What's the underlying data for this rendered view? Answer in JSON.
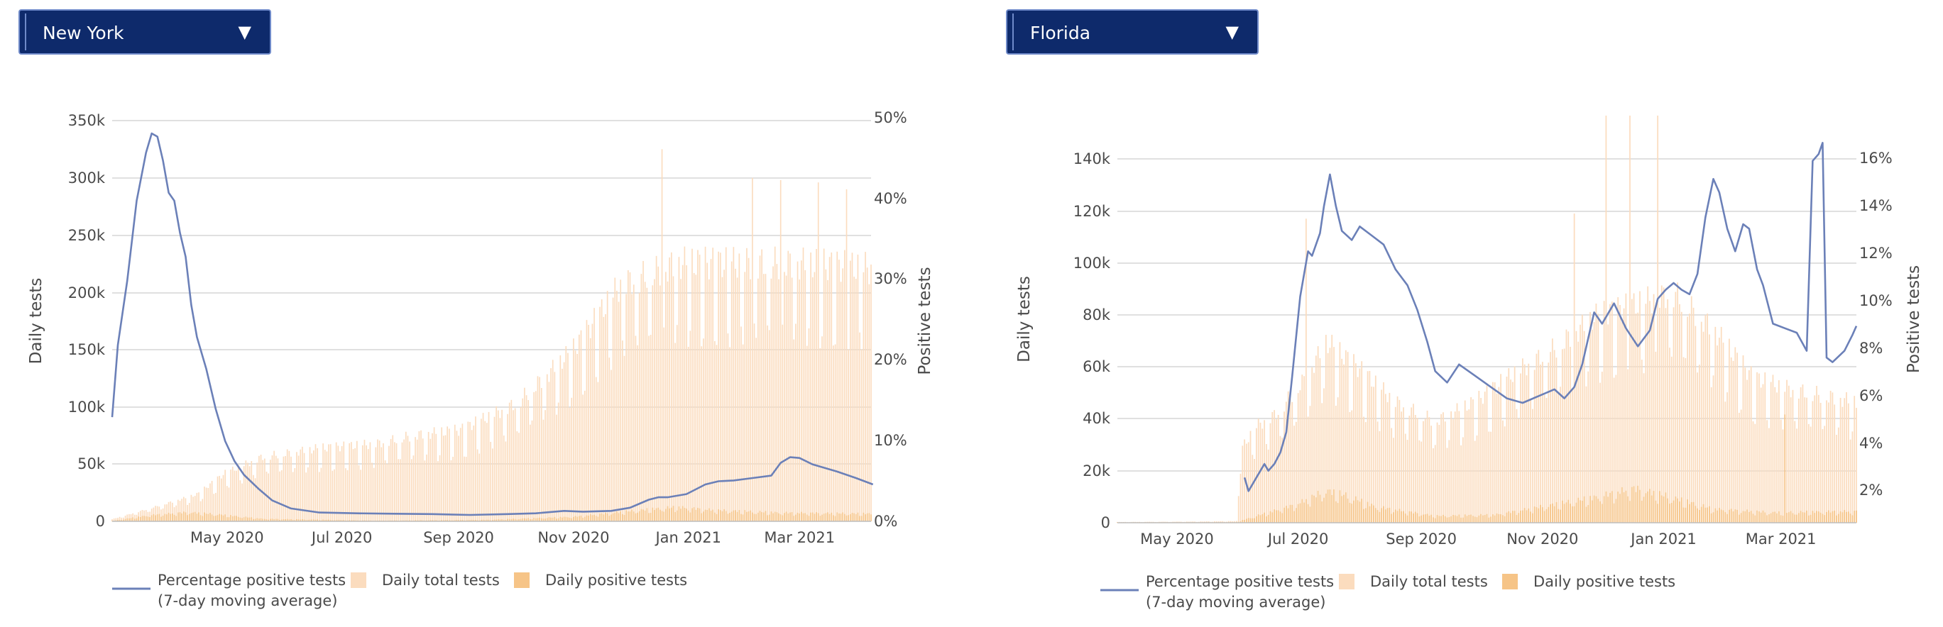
{
  "legend": {
    "line_label_1": "Percentage positive tests",
    "line_label_2": "(7-day moving average)",
    "total_label": "Daily total tests",
    "positive_label": "Daily positive tests"
  },
  "colors": {
    "line": "#6b80b8",
    "total_bars": "#fbdcbe",
    "positive_bars": "#f6c487",
    "grid": "#d6d6d6",
    "dropdown_bg": "#0e2a6b",
    "dropdown_border": "#6f8ac9"
  },
  "panels": [
    {
      "dropdown": {
        "selected": "New York"
      },
      "chart_data": {
        "type": "bar",
        "ylabel": "Daily tests",
        "y2label": "Positive tests",
        "x_ticks": [
          "May 2020",
          "Jul 2020",
          "Sep 2020",
          "Nov 2020",
          "Jan 2021",
          "Mar 2021"
        ],
        "y_ticks": [
          "0",
          "50k",
          "100k",
          "150k",
          "200k",
          "250k",
          "300k",
          "350k"
        ],
        "y2_ticks": [
          "0%",
          "10%",
          "20%",
          "30%",
          "40%",
          "50%"
        ],
        "ylim": [
          0,
          350000
        ],
        "y2lim": [
          0,
          50
        ],
        "x_range": [
          "2020-03-01",
          "2021-04-08"
        ],
        "grid": true,
        "legend_position": "bottom",
        "series": [
          {
            "name": "Daily total tests",
            "kind": "bar",
            "trend": [
              [
                0,
                2000
              ],
              [
                20,
                12000
              ],
              [
                45,
                25000
              ],
              [
                60,
                45000
              ],
              [
                80,
                60000
              ],
              [
                110,
                68000
              ],
              [
                140,
                72000
              ],
              [
                160,
                80000
              ],
              [
                185,
                85000
              ],
              [
                215,
                110000
              ],
              [
                245,
                160000
              ],
              [
                270,
                220000
              ],
              [
                300,
                240000
              ],
              [
                330,
                240000
              ],
              [
                365,
                240000
              ],
              [
                404,
                235000
              ]
            ],
            "peaks": [
              [
                292,
                325000
              ],
              [
                340,
                300000
              ],
              [
                355,
                298000
              ],
              [
                375,
                296000
              ],
              [
                390,
                290000
              ]
            ]
          },
          {
            "name": "Daily positive tests",
            "kind": "bar",
            "trend": [
              [
                0,
                500
              ],
              [
                20,
                6000
              ],
              [
                40,
                9000
              ],
              [
                55,
                7000
              ],
              [
                80,
                2500
              ],
              [
                140,
                700
              ],
              [
                200,
                1500
              ],
              [
                245,
                4500
              ],
              [
                280,
                11000
              ],
              [
                300,
                14000
              ],
              [
                320,
                11000
              ],
              [
                355,
                8500
              ],
              [
                404,
                7500
              ]
            ]
          },
          {
            "name": "Percentage positive tests (7-day moving average)",
            "kind": "line",
            "points": [
              [
                0,
                13
              ],
              [
                3,
                22
              ],
              [
                8,
                30
              ],
              [
                13,
                40
              ],
              [
                18,
                46
              ],
              [
                21,
                48.4
              ],
              [
                24,
                48
              ],
              [
                27,
                45
              ],
              [
                30,
                41
              ],
              [
                33,
                40
              ],
              [
                36,
                36
              ],
              [
                39,
                33
              ],
              [
                42,
                27
              ],
              [
                45,
                23
              ],
              [
                50,
                19
              ],
              [
                55,
                14
              ],
              [
                60,
                10
              ],
              [
                65,
                7.5
              ],
              [
                70,
                5.8
              ],
              [
                78,
                4
              ],
              [
                85,
                2.6
              ],
              [
                95,
                1.6
              ],
              [
                110,
                1.1
              ],
              [
                130,
                1.0
              ],
              [
                150,
                0.95
              ],
              [
                170,
                0.9
              ],
              [
                190,
                0.8
              ],
              [
                210,
                0.9
              ],
              [
                225,
                1.0
              ],
              [
                240,
                1.3
              ],
              [
                250,
                1.2
              ],
              [
                265,
                1.3
              ],
              [
                275,
                1.7
              ],
              [
                285,
                2.7
              ],
              [
                290,
                3.0
              ],
              [
                295,
                3.0
              ],
              [
                305,
                3.4
              ],
              [
                315,
                4.6
              ],
              [
                322,
                5.0
              ],
              [
                330,
                5.1
              ],
              [
                340,
                5.4
              ],
              [
                350,
                5.7
              ],
              [
                355,
                7.3
              ],
              [
                360,
                8.0
              ],
              [
                365,
                7.9
              ],
              [
                372,
                7.1
              ],
              [
                385,
                6.2
              ],
              [
                395,
                5.4
              ],
              [
                404,
                4.6
              ]
            ]
          }
        ]
      }
    },
    {
      "dropdown": {
        "selected": "Florida"
      },
      "chart_data": {
        "type": "bar",
        "ylabel": "Daily tests",
        "y2label": "Positive tests",
        "x_ticks": [
          "May 2020",
          "Jul 2020",
          "Sep 2020",
          "Nov 2020",
          "Jan 2021",
          "Mar 2021"
        ],
        "y_ticks": [
          "0",
          "20k",
          "40k",
          "60k",
          "80k",
          "100k",
          "120k",
          "140k"
        ],
        "y2_ticks": [
          "2%",
          "4%",
          "6%",
          "8%",
          "10%",
          "12%",
          "14%",
          "16%"
        ],
        "ylim": [
          0,
          158000
        ],
        "y2lim": [
          0,
          18
        ],
        "x_range": [
          "2020-04-01",
          "2021-04-08"
        ],
        "grid": true,
        "legend_position": "bottom",
        "series": [
          {
            "name": "Daily total tests",
            "kind": "bar",
            "trend": [
              [
                0,
                300
              ],
              [
                40,
                500
              ],
              [
                60,
                700
              ],
              [
                62,
                30000
              ],
              [
                70,
                40000
              ],
              [
                80,
                45000
              ],
              [
                95,
                60000
              ],
              [
                105,
                75000
              ],
              [
                120,
                65000
              ],
              [
                140,
                50000
              ],
              [
                160,
                42000
              ],
              [
                180,
                50000
              ],
              [
                200,
                62000
              ],
              [
                220,
                72000
              ],
              [
                240,
                85000
              ],
              [
                260,
                90000
              ],
              [
                280,
                95000
              ],
              [
                300,
                80000
              ],
              [
                320,
                60000
              ],
              [
                340,
                55000
              ],
              [
                372,
                50000
              ]
            ],
            "peaks": [
              [
                95,
                118000
              ],
              [
                230,
                120000
              ],
              [
                246,
                158000
              ],
              [
                258,
                158000
              ],
              [
                272,
                158000
              ]
            ]
          },
          {
            "name": "Daily positive tests",
            "kind": "bar",
            "trend": [
              [
                0,
                200
              ],
              [
                60,
                300
              ],
              [
                70,
                3000
              ],
              [
                90,
                8000
              ],
              [
                105,
                14000
              ],
              [
                115,
                12000
              ],
              [
                130,
                7000
              ],
              [
                160,
                3000
              ],
              [
                190,
                3500
              ],
              [
                220,
                8000
              ],
              [
                240,
                11000
              ],
              [
                250,
                13000
              ],
              [
                260,
                15000
              ],
              [
                275,
                12000
              ],
              [
                300,
                6000
              ],
              [
                330,
                4500
              ],
              [
                372,
                5000
              ]
            ],
            "peaks": [
              [
                336,
                42000
              ]
            ]
          },
          {
            "name": "Percentage positive tests (7-day moving average)",
            "kind": "line",
            "points": [
              [
                64,
                2.0
              ],
              [
                66,
                1.4
              ],
              [
                70,
                2.0
              ],
              [
                74,
                2.6
              ],
              [
                76,
                2.3
              ],
              [
                79,
                2.6
              ],
              [
                82,
                3.1
              ],
              [
                85,
                4.0
              ],
              [
                88,
                6.5
              ],
              [
                92,
                10.0
              ],
              [
                96,
                12.0
              ],
              [
                98,
                11.8
              ],
              [
                102,
                12.8
              ],
              [
                104,
                14.0
              ],
              [
                107,
                15.4
              ],
              [
                110,
                14.0
              ],
              [
                113,
                12.9
              ],
              [
                118,
                12.5
              ],
              [
                122,
                13.1
              ],
              [
                128,
                12.7
              ],
              [
                134,
                12.3
              ],
              [
                140,
                11.2
              ],
              [
                146,
                10.5
              ],
              [
                151,
                9.4
              ],
              [
                156,
                8.0
              ],
              [
                160,
                6.7
              ],
              [
                166,
                6.2
              ],
              [
                172,
                7.0
              ],
              [
                180,
                6.5
              ],
              [
                188,
                6.0
              ],
              [
                196,
                5.5
              ],
              [
                204,
                5.3
              ],
              [
                212,
                5.6
              ],
              [
                220,
                5.9
              ],
              [
                225,
                5.5
              ],
              [
                230,
                6.0
              ],
              [
                234,
                7.0
              ],
              [
                240,
                9.3
              ],
              [
                244,
                8.8
              ],
              [
                250,
                9.7
              ],
              [
                256,
                8.6
              ],
              [
                262,
                7.8
              ],
              [
                268,
                8.5
              ],
              [
                272,
                9.9
              ],
              [
                276,
                10.3
              ],
              [
                280,
                10.6
              ],
              [
                284,
                10.3
              ],
              [
                288,
                10.1
              ],
              [
                292,
                11.0
              ],
              [
                296,
                13.5
              ],
              [
                300,
                15.2
              ],
              [
                303,
                14.6
              ],
              [
                307,
                13.0
              ],
              [
                311,
                12.0
              ],
              [
                315,
                13.2
              ],
              [
                318,
                13.0
              ],
              [
                322,
                11.2
              ],
              [
                325,
                10.5
              ],
              [
                330,
                8.8
              ],
              [
                336,
                8.6
              ],
              [
                342,
                8.4
              ],
              [
                347,
                7.6
              ],
              [
                350,
                16.0
              ],
              [
                353,
                16.3
              ],
              [
                355,
                16.8
              ],
              [
                357,
                7.3
              ],
              [
                360,
                7.1
              ],
              [
                366,
                7.6
              ],
              [
                370,
                8.3
              ],
              [
                372,
                8.7
              ]
            ]
          }
        ]
      }
    }
  ]
}
